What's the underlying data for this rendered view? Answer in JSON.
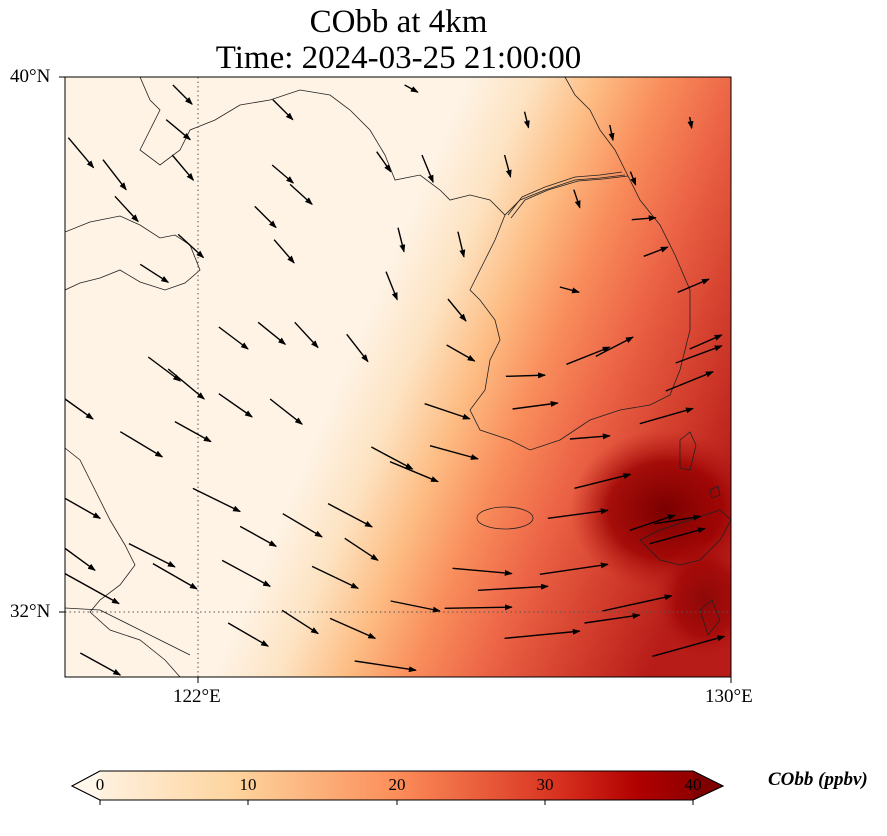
{
  "title": {
    "line1": "CObb at 4km",
    "line2": "Time: 2024-03-25 21:00:00"
  },
  "axes": {
    "lat_labels": [
      "40°N",
      "32°N"
    ],
    "lon_labels": [
      "122°E",
      "130°E"
    ]
  },
  "colorbar": {
    "label": "CObb (ppbv)",
    "ticks": [
      "0",
      "10",
      "20",
      "30",
      "40"
    ],
    "range": [
      0,
      40
    ],
    "extend": "both",
    "colormap": [
      "#fff7ec",
      "#fdd49e",
      "#fc8d59",
      "#d7301f",
      "#7f0000"
    ]
  },
  "chart_data": {
    "type": "map",
    "variable": "CObb",
    "units": "ppbv",
    "level": "4km",
    "lon_range": [
      120,
      130
    ],
    "lat_range": [
      31,
      40
    ],
    "gridlines": {
      "lon": [
        122,
        130
      ],
      "lat": [
        32,
        40
      ]
    },
    "field_summary": "low (<5 ppbv) over northwest, increasing to >35 ppbv southeast near 128.5E 33.5N",
    "wind_vectors_lon_lat_u_v": [
      [
        120.05,
        39.09,
        6.3,
        -7.5
      ],
      [
        120.57,
        38.76,
        5.8,
        -7.5
      ],
      [
        120.75,
        38.21,
        5.8,
        -6.3
      ],
      [
        121.62,
        39.88,
        4.8,
        -4.8
      ],
      [
        121.52,
        39.36,
        6,
        -5
      ],
      [
        121.61,
        38.83,
        5.3,
        -6.3
      ],
      [
        121.7,
        37.64,
        6.3,
        -5.8
      ],
      [
        121.13,
        37.19,
        7,
        -4.5
      ],
      [
        123.12,
        39.66,
        5,
        -5
      ],
      [
        123.11,
        38.68,
        5.3,
        -4.5
      ],
      [
        123.38,
        38.39,
        5.5,
        -5
      ],
      [
        122.85,
        38.06,
        5.3,
        -5.3
      ],
      [
        123.14,
        37.56,
        5,
        -5.8
      ],
      [
        122.31,
        36.25,
        7.3,
        -5.5
      ],
      [
        122.9,
        36.32,
        6.8,
        -5.5
      ],
      [
        123.45,
        36.32,
        5.8,
        -6.3
      ],
      [
        124.23,
        36.14,
        5.3,
        -6.8
      ],
      [
        121.25,
        35.8,
        8,
        -6
      ],
      [
        121.55,
        35.62,
        9,
        -7.5
      ],
      [
        122.31,
        35.25,
        8.3,
        -5.8
      ],
      [
        123.08,
        35.17,
        8,
        -6.3
      ],
      [
        120.83,
        34.68,
        10.5,
        -6.3
      ],
      [
        121.65,
        34.83,
        9,
        -5
      ],
      [
        120.0,
        35.17,
        7,
        -5
      ],
      [
        121.92,
        33.83,
        11.8,
        -5.8
      ],
      [
        122.63,
        33.26,
        9,
        -5
      ],
      [
        123.27,
        33.45,
        9.8,
        -5.8
      ],
      [
        123.95,
        33.6,
        11,
        -5.8
      ],
      [
        124.2,
        33.08,
        8.3,
        -5.5
      ],
      [
        121.32,
        32.7,
        11,
        -6.3
      ],
      [
        122.36,
        32.75,
        12,
        -6.5
      ],
      [
        123.71,
        32.66,
        11.5,
        -5.5
      ],
      [
        120.96,
        33.0,
        11.5,
        -5.8
      ],
      [
        120.0,
        32.93,
        7.5,
        -5.5
      ],
      [
        120.0,
        32.55,
        13.5,
        -7.5
      ],
      [
        120.0,
        33.68,
        8.8,
        -5
      ],
      [
        122.45,
        31.81,
        10,
        -5.8
      ],
      [
        123.26,
        32.0,
        9,
        -5.8
      ],
      [
        123.98,
        31.88,
        11.3,
        -5
      ],
      [
        120.23,
        31.36,
        10,
        -5.5
      ],
      [
        124.35,
        31.24,
        15.3,
        -2.3
      ],
      [
        124.89,
        32.14,
        12.3,
        -2.5
      ],
      [
        125.7,
        32.03,
        16.8,
        0.3
      ],
      [
        125.82,
        32.63,
        14.8,
        -1.3
      ],
      [
        126.2,
        32.3,
        17.5,
        1
      ],
      [
        127.13,
        32.54,
        17,
        2.5
      ],
      [
        127.25,
        33.38,
        15,
        2
      ],
      [
        127.65,
        33.83,
        14,
        3.5
      ],
      [
        128.85,
        33.3,
        11.5,
        1.8
      ],
      [
        128.78,
        33.0,
        13.8,
        3.8
      ],
      [
        128.48,
        33.2,
        11.3,
        3.8
      ],
      [
        128.07,
        31.99,
        17.3,
        3.8
      ],
      [
        127.8,
        31.81,
        13.8,
        2
      ],
      [
        126.6,
        31.58,
        18.8,
        1.8
      ],
      [
        128.82,
        31.31,
        18,
        5
      ],
      [
        125.4,
        35.1,
        11.3,
        -3.8
      ],
      [
        125.48,
        34.47,
        12,
        -3.3
      ],
      [
        124.88,
        34.23,
        12,
        -5
      ],
      [
        124.6,
        34.45,
        10.3,
        -5.5
      ],
      [
        125.73,
        35.98,
        7,
        -4
      ],
      [
        126.62,
        35.51,
        9.8,
        0.3
      ],
      [
        126.72,
        35.02,
        11.3,
        1.5
      ],
      [
        127.53,
        35.69,
        10.8,
        4.3
      ],
      [
        127.97,
        35.81,
        9.3,
        4.8
      ],
      [
        129.17,
        35.71,
        11.5,
        4.3
      ],
      [
        129.02,
        35.29,
        11.8,
        4.8
      ],
      [
        128.63,
        34.8,
        13.3,
        3.8
      ],
      [
        127.58,
        34.57,
        10,
        0.8
      ],
      [
        128.69,
        37.31,
        6,
        2.3
      ],
      [
        129.2,
        36.77,
        7.8,
        3.3
      ],
      [
        128.51,
        37.86,
        6,
        0.5
      ],
      [
        127.43,
        36.85,
        4.8,
        -1.3
      ],
      [
        125.75,
        36.67,
        4.5,
        -5.5
      ],
      [
        124.82,
        37.08,
        2.8,
        -7
      ],
      [
        125.0,
        37.74,
        1.5,
        -6
      ],
      [
        125.9,
        37.68,
        1.5,
        -6.3
      ],
      [
        126.6,
        38.83,
        1.5,
        -5.5
      ],
      [
        126.9,
        39.48,
        1,
        -4
      ],
      [
        127.64,
        38.31,
        1.5,
        -4.5
      ],
      [
        124.68,
        38.88,
        3.5,
        -5
      ],
      [
        125.36,
        38.83,
        2.8,
        -6.8
      ],
      [
        125.1,
        39.88,
        3.3,
        -1.8
      ],
      [
        128.18,
        39.28,
        0.8,
        -3.8
      ],
      [
        129.38,
        39.4,
        0.5,
        -2.8
      ],
      [
        128.49,
        38.58,
        1.3,
        -3.3
      ],
      [
        129.38,
        35.92,
        8,
        3.5
      ]
    ]
  }
}
